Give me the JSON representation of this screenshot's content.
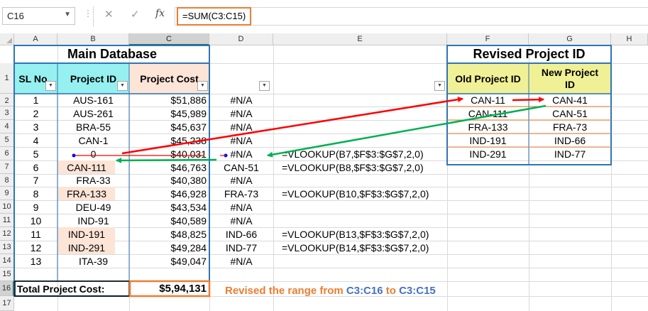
{
  "formula_bar": {
    "name_box": "C16",
    "formula": "=SUM(C3:C15)",
    "icons": [
      "chevron-down-icon",
      "cancel-icon",
      "enter-icon",
      "insert-function-icon"
    ],
    "cancel_glyph": "✕",
    "enter_glyph": "✓",
    "fx_glyph": "fx",
    "dots": "⋮"
  },
  "columns": [
    "A",
    "B",
    "C",
    "D",
    "E",
    "F",
    "G",
    "H"
  ],
  "rows": [
    "1",
    "2",
    "3",
    "4",
    "5",
    "6",
    "7",
    "8",
    "9",
    "10",
    "11",
    "12",
    "13",
    "14",
    "15",
    "16",
    "17"
  ],
  "main_database": {
    "title": "Main Database",
    "headers": {
      "sl_no": "SL No",
      "project_id": "Project ID",
      "project_cost": "Project Cost"
    },
    "records": [
      {
        "sl": "1",
        "id": "AUS-161",
        "cost": "$51,886",
        "d": "#N/A",
        "e": ""
      },
      {
        "sl": "2",
        "id": "AUS-261",
        "cost": "$45,989",
        "d": "#N/A",
        "e": ""
      },
      {
        "sl": "3",
        "id": "BRA-55",
        "cost": "$45,637",
        "d": "#N/A",
        "e": ""
      },
      {
        "sl": "4",
        "id": "CAN-1",
        "cost": "$45,238",
        "d": "#N/A",
        "e": ""
      },
      {
        "sl": "5",
        "id": "0",
        "cost": "$40,031",
        "d": "#N/A",
        "e": "=VLOOKUP(B7,$F$3:$G$7,2,0)"
      },
      {
        "sl": "6",
        "id": "CAN-111",
        "cost": "$46,763",
        "d": "CAN-51",
        "e": "=VLOOKUP(B8,$F$3:$G$7,2,0)"
      },
      {
        "sl": "7",
        "id": "FRA-33",
        "cost": "$40,380",
        "d": "#N/A",
        "e": ""
      },
      {
        "sl": "8",
        "id": "FRA-133",
        "cost": "$46,928",
        "d": "FRA-73",
        "e": "=VLOOKUP(B10,$F$3:$G$7,2,0)"
      },
      {
        "sl": "9",
        "id": "DEU-49",
        "cost": "$43,534",
        "d": "#N/A",
        "e": ""
      },
      {
        "sl": "10",
        "id": "IND-91",
        "cost": "$40,589",
        "d": "#N/A",
        "e": ""
      },
      {
        "sl": "11",
        "id": "IND-191",
        "cost": "$48,825",
        "d": "IND-66",
        "e": "=VLOOKUP(B13,$F$3:$G$7,2,0)"
      },
      {
        "sl": "12",
        "id": "IND-291",
        "cost": "$49,284",
        "d": "IND-77",
        "e": "=VLOOKUP(B14,$F$3:$G$7,2,0)"
      },
      {
        "sl": "13",
        "id": "ITA-39",
        "cost": "$49,047",
        "d": "#N/A",
        "e": ""
      }
    ],
    "total_label": "Total Project Cost:",
    "total_value": "$5,94,131"
  },
  "revised_table": {
    "title": "Revised Project ID",
    "headers": {
      "old": "Old Project ID",
      "new_line1": "New Project",
      "new_line2": "ID"
    },
    "records": [
      {
        "old": "CAN-11",
        "new": "CAN-41"
      },
      {
        "old": "CAN-111",
        "new": "CAN-51"
      },
      {
        "old": "FRA-133",
        "new": "FRA-73"
      },
      {
        "old": "IND-191",
        "new": "IND-66"
      },
      {
        "old": "IND-291",
        "new": "IND-77"
      }
    ]
  },
  "note": {
    "prefix": "Revised the range from ",
    "range_from": "C3:C16",
    "middle": " to ",
    "range_to": "C3:C15"
  },
  "colors": {
    "header_cyan": "#96f0f0",
    "header_peach": "#fce4d6",
    "header_yellow": "#f0f096",
    "border_blue": "#2e75b6",
    "highlight_orange": "#ed7d31",
    "arrow_red": "#ff0000",
    "arrow_green": "#00b050"
  }
}
